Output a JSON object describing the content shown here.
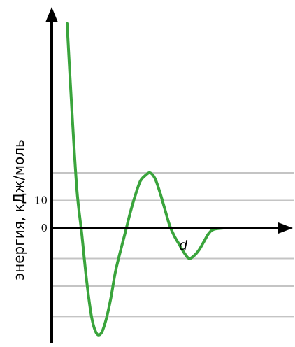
{
  "chart_data": {
    "type": "line",
    "ylabel": "энергия, кДж/моль",
    "xlabel": "d",
    "ytick_labels": [
      "10",
      "0"
    ],
    "yticks": [
      10,
      0
    ],
    "grid_levels": [
      20,
      10,
      -11,
      -21,
      -32
    ],
    "ylim": [
      -40,
      74
    ],
    "xlim": [
      0,
      330
    ],
    "grid": true,
    "colors": {
      "curve": "#3aa43c",
      "axis": "#000000",
      "grid": "#c4c4c4"
    },
    "series": [
      {
        "points": [
          [
            0,
            74
          ],
          [
            8,
            42
          ],
          [
            16,
            14
          ],
          [
            24,
            -2
          ],
          [
            32,
            -19
          ],
          [
            40,
            -32
          ],
          [
            48,
            -38
          ],
          [
            56,
            -38
          ],
          [
            64,
            -33
          ],
          [
            72,
            -25
          ],
          [
            80,
            -15
          ],
          [
            96,
            -1
          ],
          [
            104,
            6
          ],
          [
            112,
            12
          ],
          [
            120,
            17
          ],
          [
            128,
            19
          ],
          [
            136,
            20
          ],
          [
            144,
            18
          ],
          [
            152,
            13
          ],
          [
            160,
            7
          ],
          [
            168,
            1
          ],
          [
            176,
            -3
          ],
          [
            184,
            -6
          ],
          [
            192,
            -9
          ],
          [
            200,
            -11
          ],
          [
            208,
            -10
          ],
          [
            216,
            -8
          ],
          [
            224,
            -5
          ],
          [
            232,
            -2
          ],
          [
            240,
            -0.5
          ],
          [
            256,
            0
          ]
        ]
      }
    ]
  }
}
